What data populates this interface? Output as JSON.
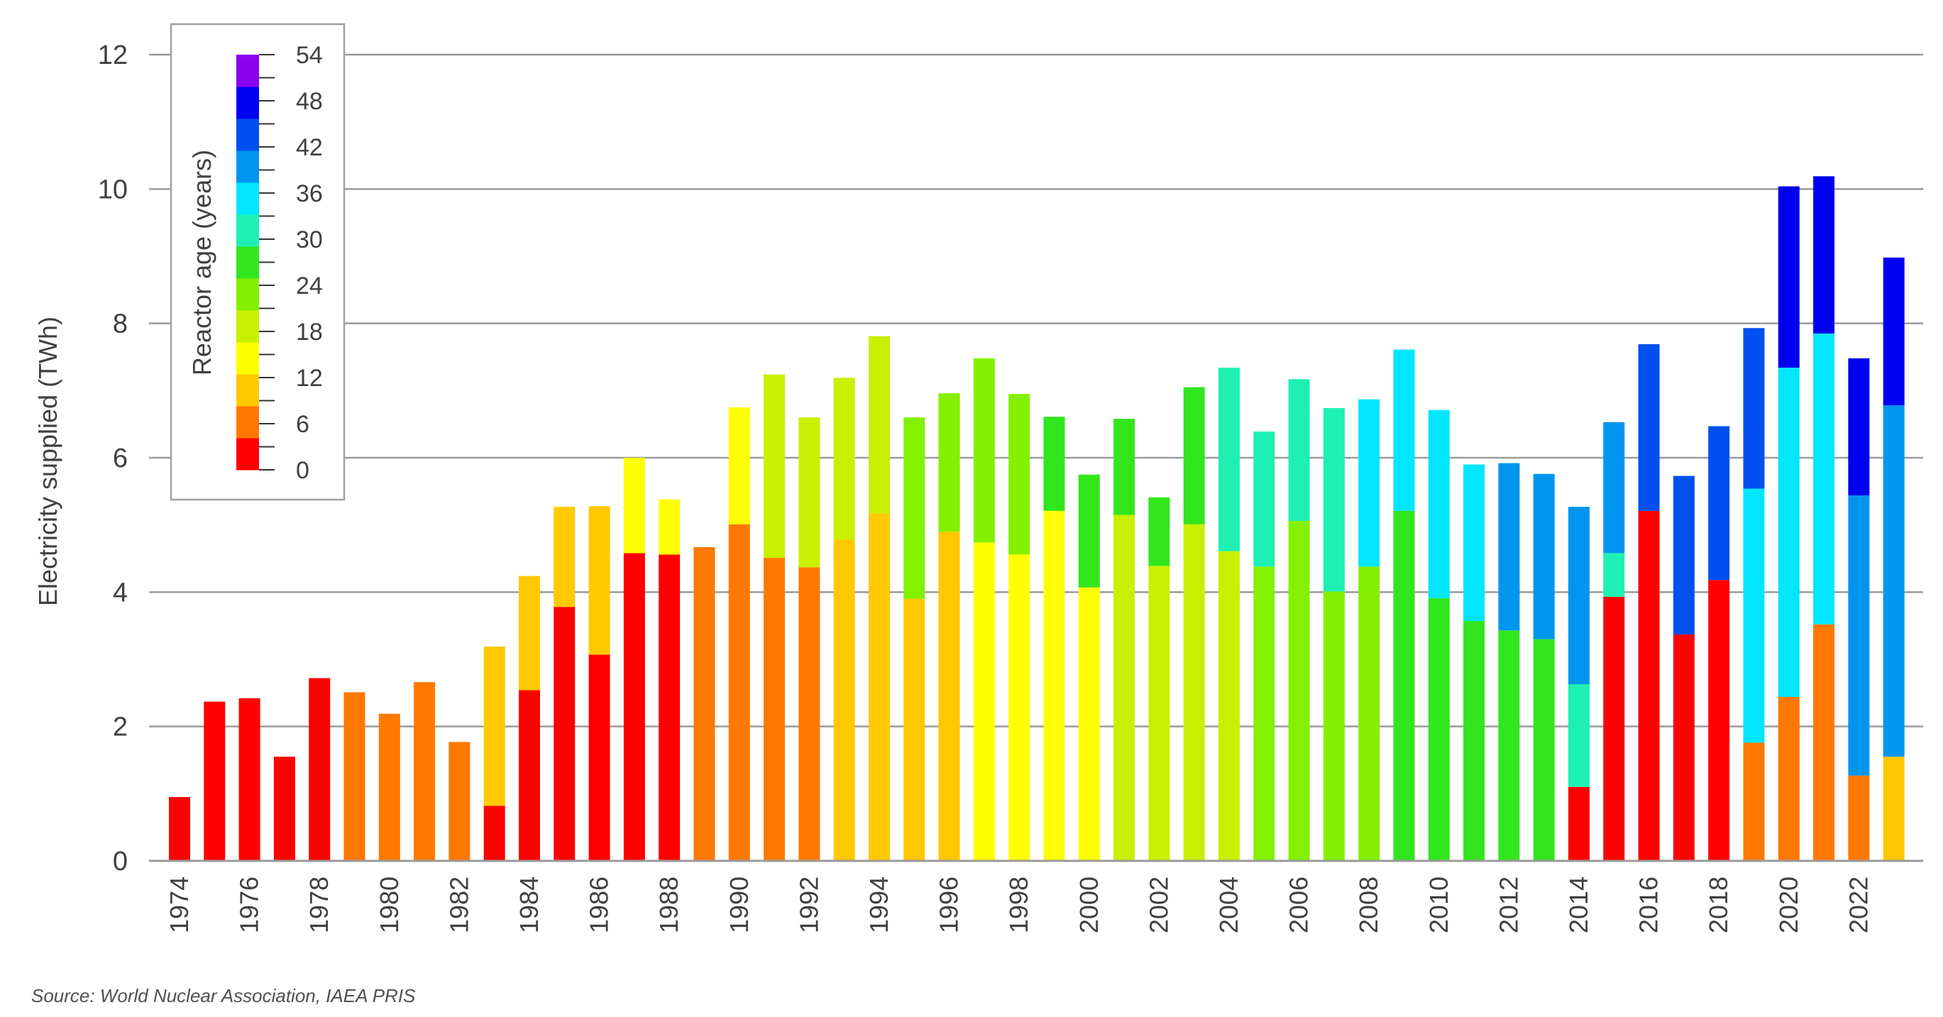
{
  "source_note": "Source: World Nuclear Association, IAEA PRIS",
  "chart_data": {
    "type": "bar",
    "stacked": true,
    "ylabel": "Electricity supplied (TWh)",
    "ylim": [
      0,
      12
    ],
    "yticks": [
      0,
      2,
      4,
      6,
      8,
      10,
      12
    ],
    "grid": true,
    "x": [
      1974,
      1975,
      1976,
      1977,
      1978,
      1979,
      1980,
      1981,
      1982,
      1983,
      1984,
      1985,
      1986,
      1987,
      1988,
      1989,
      1990,
      1991,
      1992,
      1993,
      1994,
      1995,
      1996,
      1997,
      1998,
      1999,
      2000,
      2001,
      2002,
      2003,
      2004,
      2005,
      2006,
      2007,
      2008,
      2009,
      2010,
      2011,
      2012,
      2013,
      2014,
      2015,
      2016,
      2017,
      2018,
      2019,
      2020,
      2021,
      2022,
      2023
    ],
    "xtick_labels": [
      "1974",
      "1976",
      "1978",
      "1980",
      "1982",
      "1984",
      "1986",
      "1988",
      "1990",
      "1992",
      "1994",
      "1996",
      "1998",
      "2000",
      "2002",
      "2004",
      "2006",
      "2008",
      "2010",
      "2012",
      "2014",
      "2016",
      "2018",
      "2020",
      "2022"
    ],
    "stacks": [
      [
        {
          "age": 0,
          "value": 0.95
        }
      ],
      [
        {
          "age": 1,
          "value": 2.37
        }
      ],
      [
        {
          "age": 2,
          "value": 2.42
        }
      ],
      [
        {
          "age": 3,
          "value": 1.55
        }
      ],
      [
        {
          "age": 4,
          "value": 2.72
        }
      ],
      [
        {
          "age": 5,
          "value": 2.51
        }
      ],
      [
        {
          "age": 6,
          "value": 2.19
        }
      ],
      [
        {
          "age": 7,
          "value": 2.66
        }
      ],
      [
        {
          "age": 8,
          "value": 1.77
        }
      ],
      [
        {
          "age": 0,
          "value": 0.82
        },
        {
          "age": 9,
          "value": 2.37
        }
      ],
      [
        {
          "age": 0,
          "value": 2.54
        },
        {
          "age": 10,
          "value": 1.7
        }
      ],
      [
        {
          "age": 1,
          "value": 3.78
        },
        {
          "age": 11,
          "value": 1.49
        }
      ],
      [
        {
          "age": 2,
          "value": 3.07
        },
        {
          "age": 12,
          "value": 2.21
        }
      ],
      [
        {
          "age": 3,
          "value": 4.58
        },
        {
          "age": 13,
          "value": 1.42
        }
      ],
      [
        {
          "age": 4,
          "value": 4.56
        },
        {
          "age": 14,
          "value": 0.82
        }
      ],
      [
        {
          "age": 5,
          "value": 4.67
        }
      ],
      [
        {
          "age": 6,
          "value": 5.01
        },
        {
          "age": 16,
          "value": 1.74
        }
      ],
      [
        {
          "age": 7,
          "value": 4.51
        },
        {
          "age": 17,
          "value": 2.73
        }
      ],
      [
        {
          "age": 8,
          "value": 4.37
        },
        {
          "age": 18,
          "value": 2.23
        }
      ],
      [
        {
          "age": 9,
          "value": 4.78
        },
        {
          "age": 19,
          "value": 2.41
        }
      ],
      [
        {
          "age": 10,
          "value": 5.17
        },
        {
          "age": 20,
          "value": 2.64
        }
      ],
      [
        {
          "age": 11,
          "value": 3.9
        },
        {
          "age": 21,
          "value": 2.7
        }
      ],
      [
        {
          "age": 12,
          "value": 4.9
        },
        {
          "age": 22,
          "value": 2.06
        }
      ],
      [
        {
          "age": 13,
          "value": 4.74
        },
        {
          "age": 23,
          "value": 2.74
        }
      ],
      [
        {
          "age": 14,
          "value": 4.56
        },
        {
          "age": 24,
          "value": 2.39
        }
      ],
      [
        {
          "age": 15,
          "value": 5.21
        },
        {
          "age": 25,
          "value": 1.4
        }
      ],
      [
        {
          "age": 16,
          "value": 4.07
        },
        {
          "age": 26,
          "value": 1.68
        }
      ],
      [
        {
          "age": 17,
          "value": 5.15
        },
        {
          "age": 27,
          "value": 1.43
        }
      ],
      [
        {
          "age": 18,
          "value": 4.39
        },
        {
          "age": 28,
          "value": 1.02
        }
      ],
      [
        {
          "age": 19,
          "value": 5.01
        },
        {
          "age": 29,
          "value": 2.04
        }
      ],
      [
        {
          "age": 20,
          "value": 4.61
        },
        {
          "age": 30,
          "value": 2.73
        }
      ],
      [
        {
          "age": 21,
          "value": 4.38
        },
        {
          "age": 31,
          "value": 2.01
        }
      ],
      [
        {
          "age": 22,
          "value": 5.06
        },
        {
          "age": 32,
          "value": 2.11
        }
      ],
      [
        {
          "age": 23,
          "value": 4.01
        },
        {
          "age": 33,
          "value": 2.73
        }
      ],
      [
        {
          "age": 24,
          "value": 4.38
        },
        {
          "age": 34,
          "value": 2.49
        }
      ],
      [
        {
          "age": 25,
          "value": 5.21
        },
        {
          "age": 35,
          "value": 2.4
        }
      ],
      [
        {
          "age": 26,
          "value": 3.91
        },
        {
          "age": 36,
          "value": 2.8
        }
      ],
      [
        {
          "age": 27,
          "value": 3.57
        },
        {
          "age": 37,
          "value": 2.33
        }
      ],
      [
        {
          "age": 28,
          "value": 3.43
        },
        {
          "age": 38,
          "value": 2.49
        }
      ],
      [
        {
          "age": 29,
          "value": 3.3
        },
        {
          "age": 39,
          "value": 2.46
        }
      ],
      [
        {
          "age": 0,
          "value": 1.1
        },
        {
          "age": 30,
          "value": 1.53
        },
        {
          "age": 40,
          "value": 2.64
        }
      ],
      [
        {
          "age": 1,
          "value": 3.93
        },
        {
          "age": 31,
          "value": 0.65
        },
        {
          "age": 41,
          "value": 1.95
        }
      ],
      [
        {
          "age": 2,
          "value": 5.21
        },
        {
          "age": 42,
          "value": 2.48
        }
      ],
      [
        {
          "age": 3,
          "value": 3.37
        },
        {
          "age": 43,
          "value": 2.36
        }
      ],
      [
        {
          "age": 4,
          "value": 4.18
        },
        {
          "age": 44,
          "value": 2.29
        }
      ],
      [
        {
          "age": 5,
          "value": 1.76
        },
        {
          "age": 35,
          "value": 3.78
        },
        {
          "age": 45,
          "value": 2.39
        }
      ],
      [
        {
          "age": 6,
          "value": 2.44
        },
        {
          "age": 36,
          "value": 4.9
        },
        {
          "age": 46,
          "value": 2.7
        }
      ],
      [
        {
          "age": 7,
          "value": 3.52
        },
        {
          "age": 37,
          "value": 4.33
        },
        {
          "age": 47,
          "value": 2.34
        }
      ],
      [
        {
          "age": 8,
          "value": 1.27
        },
        {
          "age": 38,
          "value": 4.17
        },
        {
          "age": 48,
          "value": 2.04
        }
      ],
      [
        {
          "age": 9,
          "value": 1.55
        },
        {
          "age": 39,
          "value": 5.23
        },
        {
          "age": 49,
          "value": 2.2
        }
      ]
    ],
    "legend": {
      "title": "Reactor age (years)",
      "placement": "top-left",
      "tick_labels": [
        "0",
        "6",
        "12",
        "18",
        "24",
        "30",
        "36",
        "42",
        "48",
        "54"
      ],
      "range": [
        0,
        54
      ],
      "colors": [
        "#ff0000",
        "#ff7800",
        "#ffc800",
        "#ffff00",
        "#c8f000",
        "#84f000",
        "#32e61e",
        "#1ef0b4",
        "#00e6ff",
        "#0096f0",
        "#0050f0",
        "#0000f0",
        "#8c00f0"
      ]
    }
  }
}
